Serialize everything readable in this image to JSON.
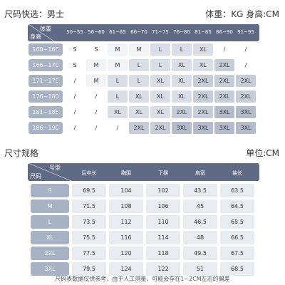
{
  "quick_select": {
    "label": "尺码快选：男士",
    "units": "体重：KG  身高:CM"
  },
  "size_chart": {
    "corner_top": "体重",
    "corner_bottom": "身高",
    "weights": [
      "50~55",
      "56~60",
      "61~65",
      "66~70",
      "71~75",
      "76~80",
      "81~85",
      "86~90",
      "91~95"
    ],
    "rows": [
      {
        "height": "160~165",
        "cells": [
          "S",
          "S",
          "M",
          "M",
          "L",
          "L",
          "XL",
          "/",
          "/"
        ]
      },
      {
        "height": "166~170",
        "cells": [
          "S",
          "M",
          "M",
          "L",
          "L",
          "XL",
          "XL",
          "2XL",
          "/"
        ]
      },
      {
        "height": "171~175",
        "cells": [
          "/",
          "M",
          "L",
          "L",
          "XL",
          "XL",
          "2XL",
          "2XL",
          "2XL"
        ]
      },
      {
        "height": "176~180",
        "cells": [
          "/",
          "/",
          "L",
          "XL",
          "XL",
          "XL",
          "2XL",
          "2XL",
          "2XL"
        ]
      },
      {
        "height": "181~185",
        "cells": [
          "/",
          "/",
          "XL",
          "XL",
          "XL",
          "2XL",
          "2XL",
          "3XL",
          "3XL"
        ]
      },
      {
        "height": "186~190",
        "cells": [
          "/",
          "/",
          "/",
          "2XL",
          "2XL",
          "3XL",
          "3XL",
          "3XL",
          "3XL"
        ]
      }
    ]
  },
  "spec": {
    "title": "尺寸规格",
    "unit": "单位:CM"
  },
  "spec_table": {
    "corner_top": "号型",
    "corner_bottom": "尺码",
    "columns": [
      "后中长",
      "胸围",
      "下摆",
      "肩宽",
      "袖长"
    ],
    "rows": [
      {
        "size": "S",
        "values": [
          "69.5",
          "104",
          "102",
          "43.5",
          "63.5"
        ]
      },
      {
        "size": "M",
        "values": [
          "71.5",
          "108",
          "106",
          "45",
          "64.5"
        ]
      },
      {
        "size": "L",
        "values": [
          "73.5",
          "112",
          "110",
          "46.5",
          "65.5"
        ]
      },
      {
        "size": "XL",
        "values": [
          "75.5",
          "116",
          "114",
          "48",
          "66.5"
        ]
      },
      {
        "size": "2XL",
        "values": [
          "77.5",
          "120",
          "118",
          "49.5",
          "67.5"
        ]
      },
      {
        "size": "3XL",
        "values": [
          "79.5",
          "124",
          "122",
          "51",
          "68.5"
        ]
      }
    ]
  },
  "footnote": "尺码表数据仅供参考，由于人工测量，可能会存在1~2CM左右的偏差"
}
